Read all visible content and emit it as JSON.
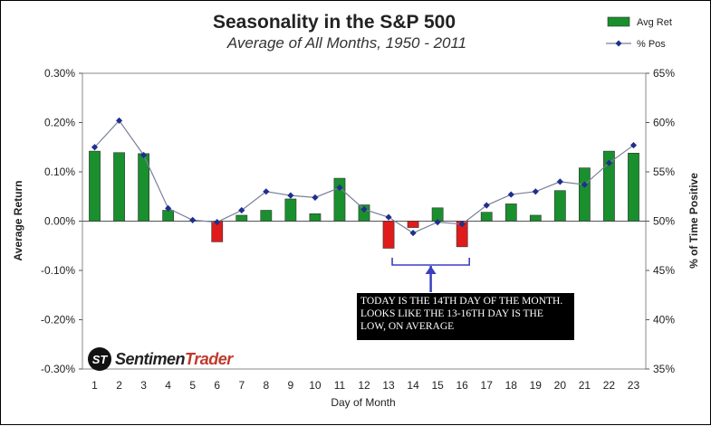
{
  "chart_data": {
    "type": "bar",
    "title": "Seasonality in the S&P 500",
    "subtitle": "Average of All Months, 1950 - 2011",
    "xlabel": "Day of Month",
    "ylabel": "Average Return",
    "y2label": "% of Time Positive",
    "categories": [
      "1",
      "2",
      "3",
      "4",
      "5",
      "6",
      "7",
      "8",
      "9",
      "10",
      "11",
      "12",
      "13",
      "14",
      "15",
      "16",
      "17",
      "18",
      "19",
      "20",
      "21",
      "22",
      "23"
    ],
    "ylim": [
      -0.3,
      0.3
    ],
    "y_ticks": [
      "-0.30%",
      "-0.20%",
      "-0.10%",
      "0.00%",
      "0.10%",
      "0.20%",
      "0.30%"
    ],
    "y2lim": [
      35,
      65
    ],
    "y2_ticks": [
      "35%",
      "40%",
      "45%",
      "50%",
      "55%",
      "60%",
      "65%"
    ],
    "series": [
      {
        "name": "Avg Ret",
        "kind": "bar",
        "axis": "left",
        "values": [
          0.142,
          0.139,
          0.137,
          0.022,
          0.0,
          -0.042,
          0.012,
          0.022,
          0.045,
          0.015,
          0.087,
          0.033,
          -0.055,
          -0.013,
          0.027,
          -0.052,
          0.018,
          0.035,
          0.012,
          0.062,
          0.108,
          0.142,
          0.138
        ],
        "pos_color": "#1a8f2e",
        "neg_color": "#e01b1b"
      },
      {
        "name": "% Pos",
        "kind": "line",
        "axis": "right",
        "values": [
          57.5,
          60.2,
          56.7,
          51.3,
          50.1,
          49.9,
          51.1,
          53.0,
          52.6,
          52.4,
          53.4,
          51.2,
          50.4,
          48.8,
          49.9,
          49.7,
          51.6,
          52.7,
          53.0,
          54.0,
          53.7,
          55.9,
          57.7
        ],
        "color": "#1f2f8f"
      }
    ],
    "legend_position": "top-right",
    "grid": false
  },
  "annotation": {
    "text": "TODAY IS THE 14TH DAY OF THE MONTH. LOOKS LIKE THE 13-16TH DAY IS THE LOW, ON AVERAGE",
    "bracket_from": "13",
    "bracket_to": "16"
  },
  "logo": {
    "part1": "Sentimen",
    "part2": "Trader",
    "mark": "ST"
  }
}
